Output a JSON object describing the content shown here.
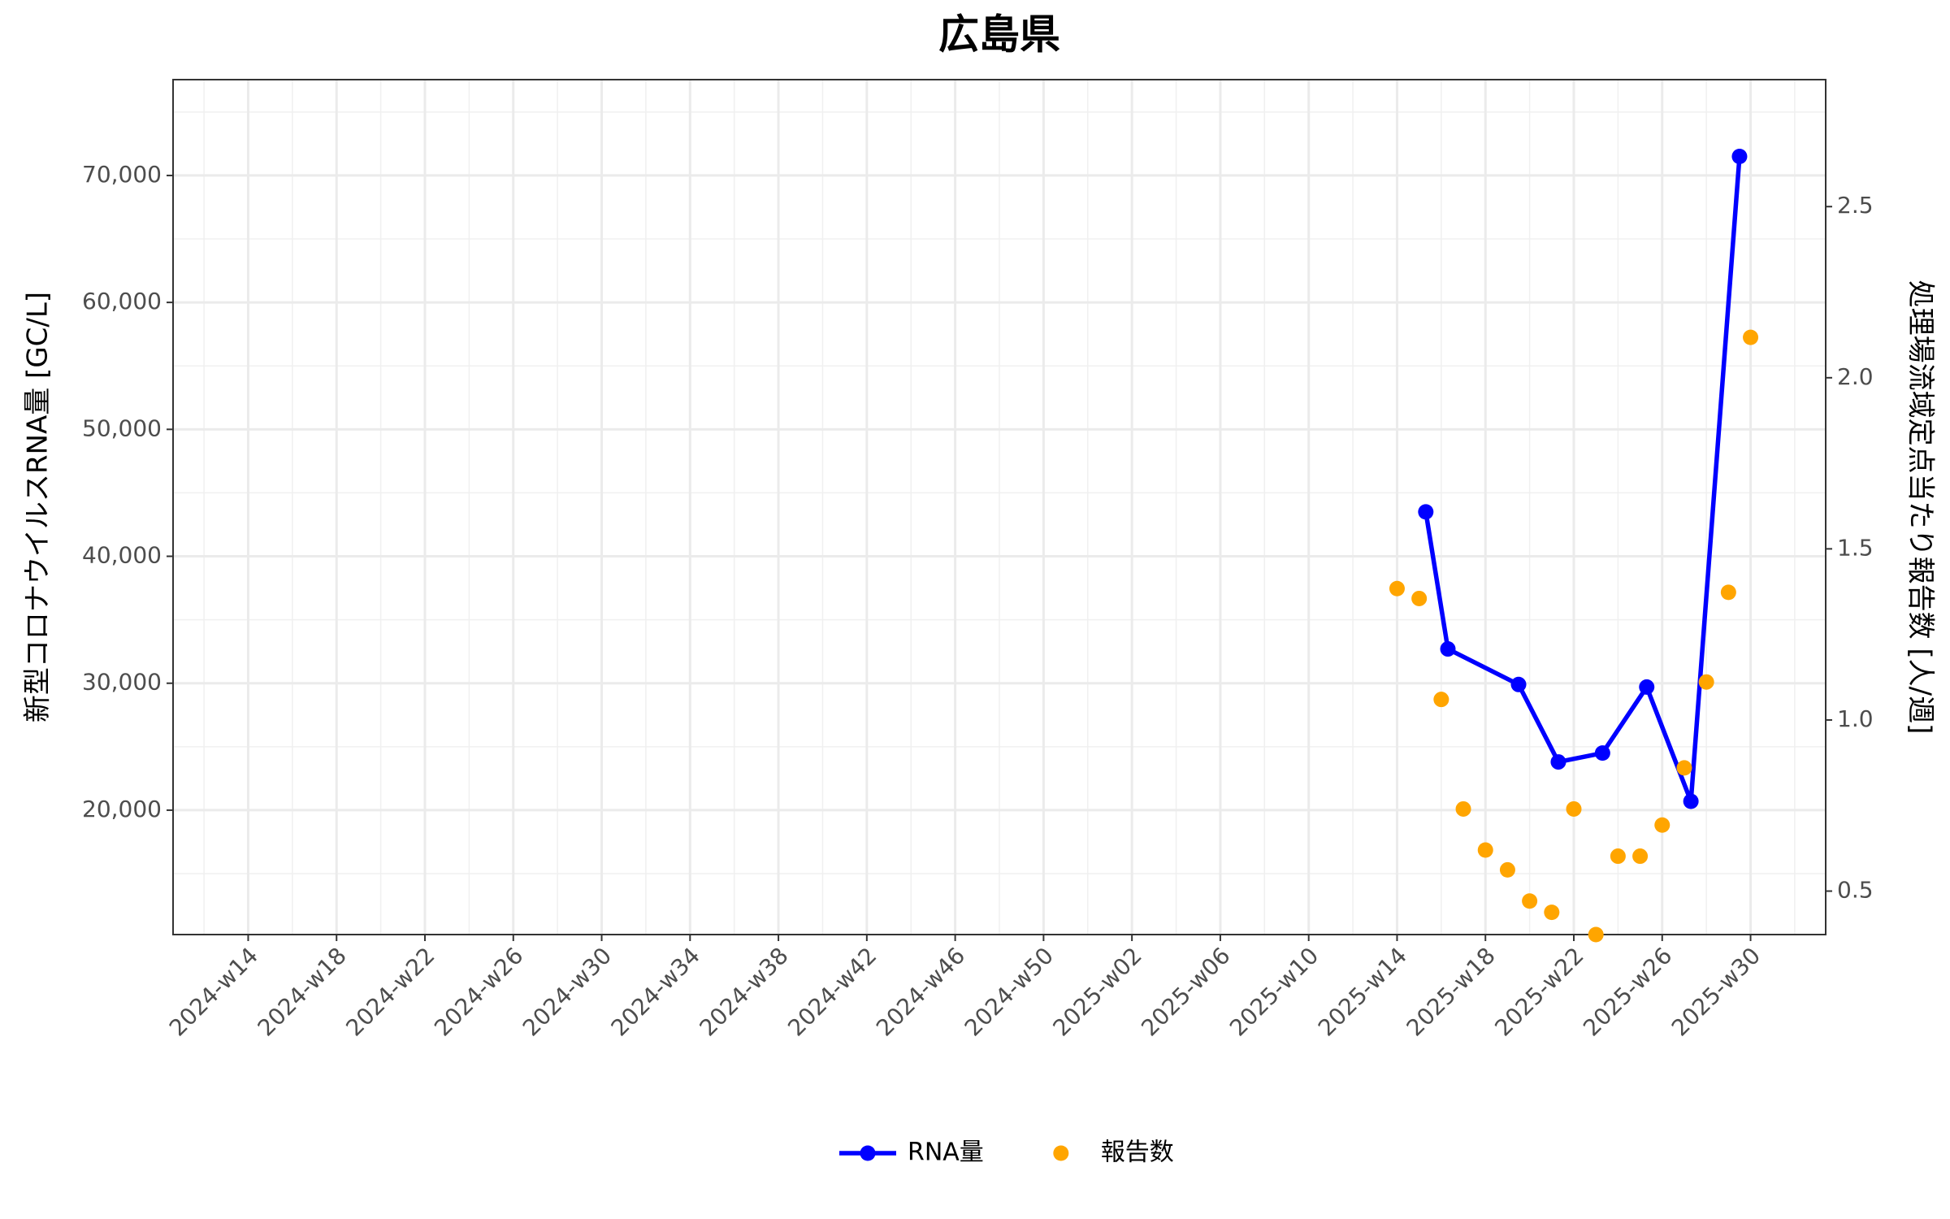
{
  "chart_data": {
    "type": "line",
    "title": "広島県",
    "y_label": "新型コロナウイルスRNA量 [GC/L]",
    "y2_label": "処理場流域定点当たり報告数 [人/週]",
    "grid": true,
    "legend": "bottom",
    "xlim": [
      10.6,
      85.4
    ],
    "xticks": [
      {
        "value": 14,
        "label": "2024-w14"
      },
      {
        "value": 18,
        "label": "2024-w18"
      },
      {
        "value": 22,
        "label": "2024-w22"
      },
      {
        "value": 26,
        "label": "2024-w26"
      },
      {
        "value": 30,
        "label": "2024-w30"
      },
      {
        "value": 34,
        "label": "2024-w34"
      },
      {
        "value": 38,
        "label": "2024-w38"
      },
      {
        "value": 42,
        "label": "2024-w42"
      },
      {
        "value": 46,
        "label": "2024-w46"
      },
      {
        "value": 50,
        "label": "2024-w50"
      },
      {
        "value": 54,
        "label": "2025-w02"
      },
      {
        "value": 58,
        "label": "2025-w06"
      },
      {
        "value": 62,
        "label": "2025-w10"
      },
      {
        "value": 66,
        "label": "2025-w14"
      },
      {
        "value": 70,
        "label": "2025-w18"
      },
      {
        "value": 74,
        "label": "2025-w22"
      },
      {
        "value": 78,
        "label": "2025-w26"
      },
      {
        "value": 82,
        "label": "2025-w30"
      }
    ],
    "ylim": [
      10200,
      77550
    ],
    "yticks": [
      {
        "value": 20000,
        "label": "20,000"
      },
      {
        "value": 30000,
        "label": "30,000"
      },
      {
        "value": 40000,
        "label": "40,000"
      },
      {
        "value": 50000,
        "label": "50,000"
      },
      {
        "value": 60000,
        "label": "60,000"
      },
      {
        "value": 70000,
        "label": "70,000"
      }
    ],
    "y2lim": [
      0.373,
      2.871
    ],
    "y2ticks": [
      0.5,
      {
        "value": 1,
        "label": "1.0"
      },
      1.5,
      {
        "value": 2,
        "label": "2.0"
      },
      2.5
    ],
    "series": [
      {
        "name": "RNA量",
        "color": "#0000ff",
        "type": "line",
        "axis": "y",
        "x": [
          67.3,
          68.3,
          71.5,
          73.3,
          75.3,
          77.3,
          79.3,
          81.5
        ],
        "values": [
          43500,
          32700,
          29900,
          23800,
          24500,
          29700,
          20700,
          71500
        ]
      },
      {
        "name": "報告数",
        "color": "#ffa500",
        "type": "scatter",
        "axis": "y2",
        "x": [
          66,
          67,
          68,
          69,
          70,
          71,
          72,
          73,
          74,
          75,
          76,
          77,
          78,
          79,
          80,
          81,
          82
        ],
        "values": [
          1.384,
          1.355,
          1.06,
          0.74,
          0.62,
          0.562,
          0.471,
          0.438,
          0.74,
          0.373,
          0.602,
          0.602,
          0.693,
          0.86,
          1.111,
          1.373,
          2.118
        ]
      }
    ]
  }
}
